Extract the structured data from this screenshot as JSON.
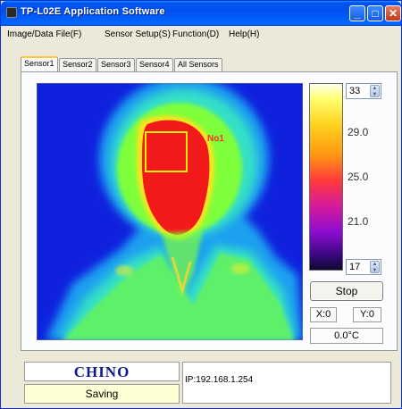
{
  "window": {
    "title": "TP-L02E Application Software",
    "minimize": "_",
    "maximize": "□",
    "close": "✕"
  },
  "menu": {
    "items": [
      {
        "label": "Image/Data File(F)"
      },
      {
        "label": "Sensor Setup(S)"
      },
      {
        "label": "Function(D)"
      },
      {
        "label": "Help(H)"
      }
    ]
  },
  "tabs": [
    {
      "label": "Sensor1",
      "active": true
    },
    {
      "label": "Sensor2",
      "active": false
    },
    {
      "label": "Sensor3",
      "active": false
    },
    {
      "label": "Sensor4",
      "active": false
    },
    {
      "label": "All Sensors",
      "active": false
    }
  ],
  "thermal": {
    "roi_label": "No1"
  },
  "scale": {
    "max_value": "33",
    "min_value": "17",
    "ticks": [
      "29.0",
      "25.0",
      "21.0"
    ]
  },
  "controls": {
    "stop_label": "Stop",
    "x_coord": "X:0",
    "y_coord": "Y:0",
    "temperature": "0.0°C"
  },
  "footer": {
    "logo": "CHINO",
    "status": "Saving",
    "ip": "IP:192.168.1.254"
  }
}
